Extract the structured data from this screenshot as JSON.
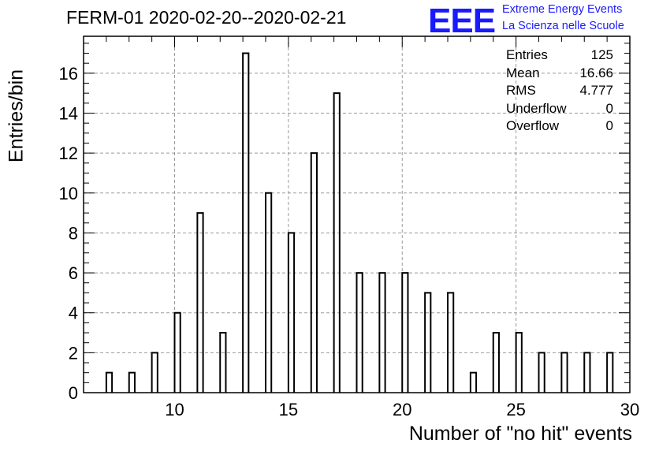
{
  "chart_data": {
    "type": "bar",
    "title": "FERM-01 2020-02-20--2020-02-21",
    "xlabel": "Number of \"no hit\" events",
    "ylabel": "Entries/bin",
    "xlim": [
      6,
      30
    ],
    "ylim": [
      0,
      17.85
    ],
    "x_ticks": [
      10,
      15,
      20,
      25,
      30
    ],
    "y_ticks": [
      0,
      2,
      4,
      6,
      8,
      10,
      12,
      14,
      16
    ],
    "grid": true,
    "bin_width": 0.25,
    "x": [
      7,
      8,
      9,
      10,
      11,
      12,
      13,
      14,
      15,
      16,
      17,
      18,
      19,
      20,
      21,
      22,
      23,
      24,
      25,
      26,
      27,
      28,
      29
    ],
    "values": [
      1,
      1,
      2,
      4,
      9,
      3,
      17,
      10,
      8,
      12,
      15,
      6,
      6,
      6,
      5,
      5,
      1,
      3,
      3,
      2,
      2,
      2,
      2
    ],
    "stats": [
      {
        "label": "Entries",
        "value": "125"
      },
      {
        "label": "Mean",
        "value": "16.66"
      },
      {
        "label": "RMS",
        "value": "4.777"
      },
      {
        "label": "Underflow",
        "value": "0"
      },
      {
        "label": "Overflow",
        "value": "0"
      }
    ]
  },
  "logo": {
    "mark": "EEE",
    "line1": "Extreme Energy Events",
    "line2": "La Scienza nelle Scuole",
    "color": "#1a1aff"
  }
}
